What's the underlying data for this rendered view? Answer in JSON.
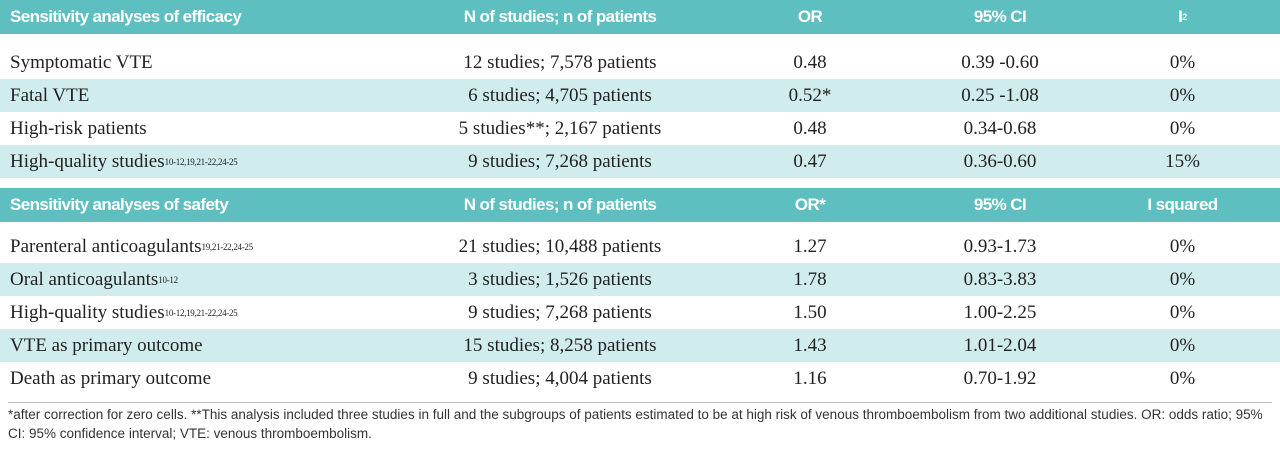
{
  "sections": [
    {
      "header": [
        "Sensitivity analyses of efficacy",
        "N of studies; n of patients",
        "OR",
        "95% CI",
        {
          "text": "I",
          "sup": "2"
        }
      ],
      "rows": [
        {
          "label": "Symptomatic VTE",
          "cells": [
            "12 studies; 7,578 patients",
            "0.48",
            "0.39 -0.60",
            "0%"
          ]
        },
        {
          "label": "Fatal VTE",
          "cells": [
            "6 studies; 4,705 patients",
            "0.52*",
            "0.25 -1.08",
            "0%"
          ]
        },
        {
          "label": "High-risk patients",
          "cells": [
            "5 studies**; 2,167 patients",
            "0.48",
            "0.34-0.68",
            "0%"
          ]
        },
        {
          "label": "High-quality studies",
          "sup": "10-12,19,21-22,24-25",
          "cells": [
            "9 studies; 7,268 patients",
            "0.47",
            "0.36-0.60",
            "15%"
          ]
        }
      ]
    },
    {
      "header": [
        "Sensitivity analyses of safety",
        "N of studies; n of patients",
        "OR*",
        "95% CI",
        "I squared"
      ],
      "rows": [
        {
          "label": "Parenteral anticoagulants",
          "sup": "19,21-22,24-25",
          "cells": [
            "21 studies; 10,488 patients",
            "1.27",
            "0.93-1.73",
            "0%"
          ]
        },
        {
          "label": "Oral anticoagulants",
          "sup": "10-12",
          "cells": [
            "3 studies; 1,526 patients",
            "1.78",
            "0.83-3.83",
            "0%"
          ]
        },
        {
          "label": "High-quality studies",
          "sup": "10-12,19,21-22,24-25",
          "cells": [
            "9 studies; 7,268 patients",
            "1.50",
            "1.00-2.25",
            "0%"
          ]
        },
        {
          "label": "VTE as primary outcome",
          "cells": [
            "15 studies; 8,258 patients",
            "1.43",
            "1.01-2.04",
            "0%"
          ]
        },
        {
          "label": "Death as primary outcome",
          "cells": [
            "9 studies; 4,004 patients",
            "1.16",
            "0.70-1.92",
            "0%"
          ]
        }
      ]
    }
  ],
  "footnote": "*after correction for zero cells. **This analysis included three studies in full and the subgroups of patients estimated to be at high risk of venous  thromboembolism from two additional studies. OR: odds ratio;  95% CI: 95% confidence interval; VTE: venous thromboembolism."
}
